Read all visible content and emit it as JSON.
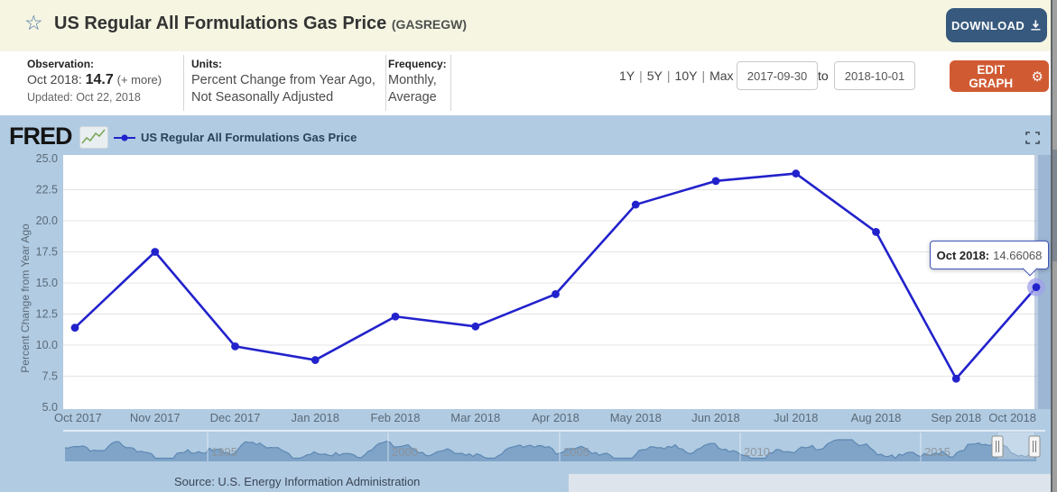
{
  "colors": {
    "accent_download": "#37597d",
    "accent_edit": "#d05b33",
    "chart_bg": "#b1cbe2",
    "series_line": "#2222cc",
    "mini_area_fill": "#7ca1c6",
    "mini_area_stroke": "#5d88b3",
    "tooltip_border": "#3d55b8",
    "highlight_band": "#8aa6c9"
  },
  "header": {
    "star_icon": "☆",
    "title": "US Regular All Formulations Gas Price",
    "series_id": "(GASREGW)",
    "download_label": "DOWNLOAD"
  },
  "info_bar": {
    "observation": {
      "label": "Observation:",
      "date": "Oct 2018:",
      "value": "14.7",
      "more": "(+ more)",
      "updated": "Updated: Oct 22, 2018"
    },
    "units": {
      "label": "Units:",
      "line1": "Percent Change from Year Ago,",
      "line2": "Not Seasonally Adjusted"
    },
    "frequency": {
      "label": "Frequency:",
      "line1": "Monthly,",
      "line2": "Average"
    },
    "range_links": [
      "1Y",
      "5Y",
      "10Y",
      "Max"
    ],
    "range_separator": "|",
    "date_from": "2017-09-30",
    "to_label": "to",
    "date_to": "2018-10-01",
    "edit_label": "EDIT GRAPH",
    "gear_icon": "⚙"
  },
  "graph": {
    "brand": "FRED",
    "legend_label": "US Regular All Formulations Gas Price",
    "tooltip_label": "Oct 2018:",
    "tooltip_value": "14.66068",
    "source": "Source: U.S. Energy Information Administration"
  },
  "chart_data": {
    "type": "line",
    "title": "US Regular All Formulations Gas Price",
    "categories": [
      "Oct 2017",
      "Nov 2017",
      "Dec 2017",
      "Jan 2018",
      "Feb 2018",
      "Mar 2018",
      "Apr 2018",
      "May 2018",
      "Jun 2018",
      "Jul 2018",
      "Aug 2018",
      "Sep 2018",
      "Oct 2018"
    ],
    "values": [
      11.4,
      17.5,
      9.9,
      8.8,
      12.3,
      11.5,
      14.1,
      21.3,
      23.2,
      23.8,
      19.1,
      7.3,
      14.66068
    ],
    "ylabel": "Percent Change from Year Ago",
    "ylim": [
      5.0,
      25.0
    ],
    "ytick_step": 2.5,
    "grid": true,
    "legend_position": "top-left",
    "highlighted_point": {
      "category": "Oct 2018",
      "value": 14.66068
    }
  },
  "mini_chart": {
    "year_labels": [
      "1995",
      "2000",
      "2005",
      "2010",
      "2015"
    ]
  }
}
